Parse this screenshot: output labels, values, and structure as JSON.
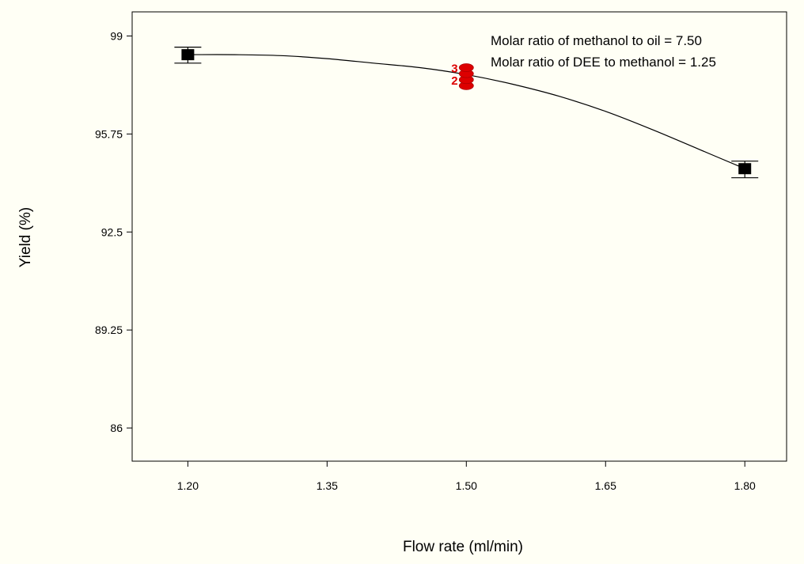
{
  "chart_data": {
    "type": "line",
    "title": "",
    "xlabel": "Flow rate (ml/min)",
    "ylabel": "Yield (%)",
    "xlim": [
      1.14,
      1.845
    ],
    "ylim": [
      84.9,
      99.8
    ],
    "x_ticks": [
      1.2,
      1.35,
      1.5,
      1.65,
      1.8
    ],
    "x_tick_labels": [
      "1.20",
      "1.35",
      "1.50",
      "1.65",
      "1.80"
    ],
    "y_ticks": [
      86,
      89.25,
      92.5,
      95.75,
      99
    ],
    "y_tick_labels": [
      "86",
      "89.25",
      "92.5",
      "95.75",
      "99"
    ],
    "annotations": [
      "Molar ratio of methanol to oil = 7.50",
      "Molar ratio of DEE to methanol = 1.25"
    ],
    "curve": {
      "x": [
        1.2,
        1.25,
        1.3,
        1.35,
        1.4,
        1.45,
        1.5,
        1.55,
        1.6,
        1.65,
        1.7,
        1.75,
        1.8
      ],
      "y": [
        98.38,
        98.38,
        98.35,
        98.25,
        98.1,
        97.95,
        97.72,
        97.4,
        97.0,
        96.5,
        95.9,
        95.25,
        94.6
      ]
    },
    "design_points": [
      {
        "x": 1.2,
        "y": 98.38,
        "err_low": 98.1,
        "err_high": 98.63
      },
      {
        "x": 1.8,
        "y": 94.6,
        "err_low": 94.3,
        "err_high": 94.85
      }
    ],
    "center_points": {
      "x": 1.5,
      "y": [
        97.35,
        97.55,
        97.75,
        97.95
      ],
      "labels": [
        "2",
        "3"
      ],
      "label_y": [
        97.55,
        97.95
      ]
    },
    "colors": {
      "background": "#fffff5",
      "axes": "#000000",
      "curve": "#000000",
      "markers": "#000000",
      "center_points": "#dd0000"
    },
    "grid": false
  }
}
